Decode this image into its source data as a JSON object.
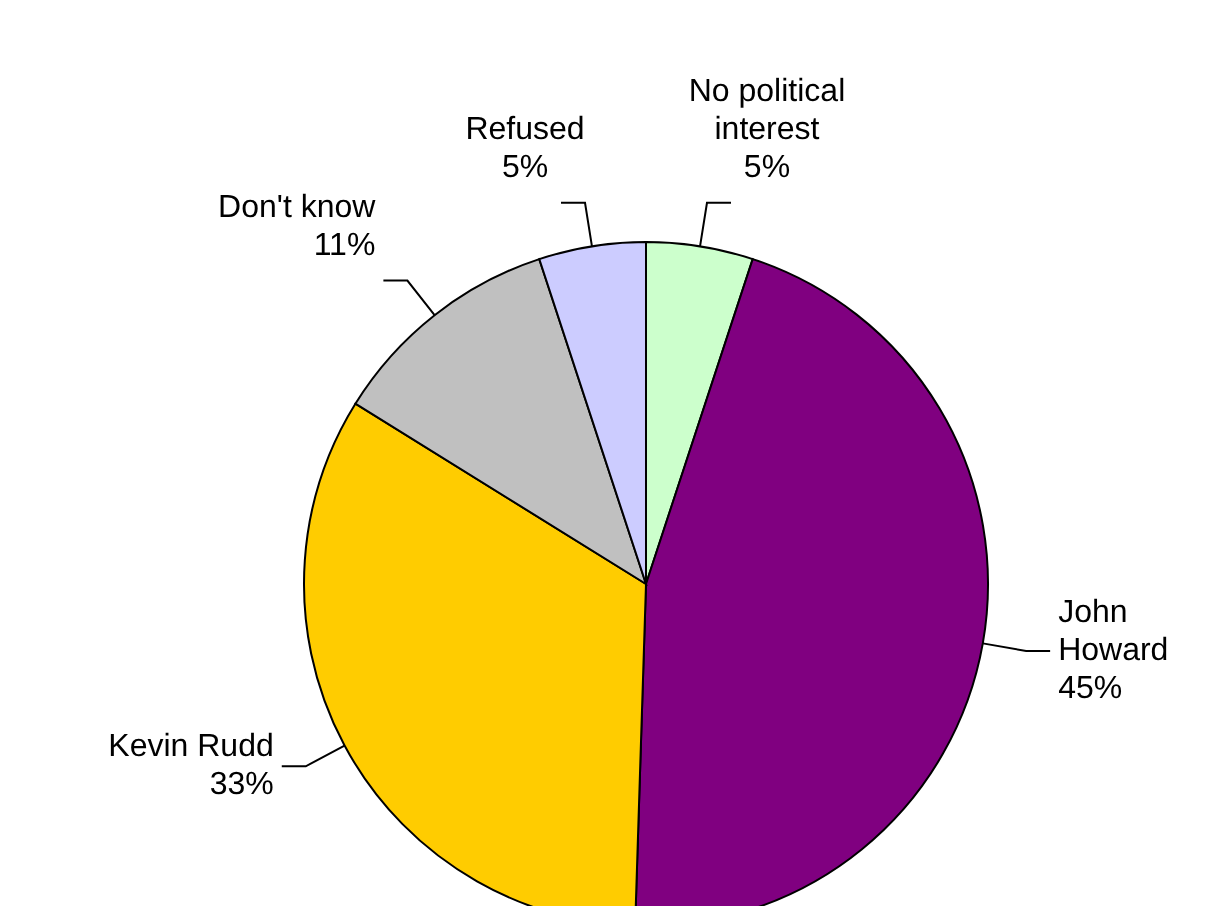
{
  "chart_data": {
    "type": "pie",
    "categories": [
      "No political interest",
      "John Howard",
      "Kevin Rudd",
      "Don't know",
      "Refused"
    ],
    "values": [
      5,
      45,
      33,
      11,
      5
    ],
    "value_labels": [
      "5%",
      "45%",
      "33%",
      "11%",
      "5%"
    ],
    "colors": [
      "#ccffcc",
      "#800080",
      "#ffcc00",
      "#c0c0c0",
      "#ccccff"
    ],
    "legend": false
  }
}
